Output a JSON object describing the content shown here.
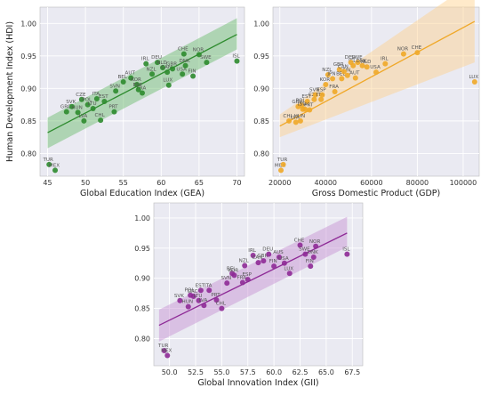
{
  "chart_data": [
    {
      "type": "scatter",
      "xlabel": "Global Education Index (GEA)",
      "ylabel": "Human Development Index (HDI)",
      "xlim": [
        44,
        71
      ],
      "ylim": [
        0.765,
        1.025
      ],
      "xticks": [
        45,
        50,
        55,
        60,
        65,
        70
      ],
      "yticks": [
        0.8,
        0.85,
        0.9,
        0.95,
        1.0
      ],
      "ytick_labels": [
        "0.80",
        "0.85",
        "0.90",
        "0.95",
        "1.00"
      ],
      "grid": true,
      "color": "#2e8b2e",
      "band_color": "#66bb66",
      "regression": {
        "x": [
          45,
          70
        ],
        "y": [
          0.832,
          0.983
        ],
        "band_lower": [
          0.808,
          0.96
        ],
        "band_upper": [
          0.855,
          1.008
        ]
      },
      "points": [
        {
          "label": "TUR",
          "x": 45.2,
          "y": 0.783
        },
        {
          "label": "MEX",
          "x": 46.0,
          "y": 0.774
        },
        {
          "label": "GRC",
          "x": 47.5,
          "y": 0.864
        },
        {
          "label": "SVK",
          "x": 48.2,
          "y": 0.872
        },
        {
          "label": "HUN",
          "x": 49.0,
          "y": 0.863
        },
        {
          "label": "LVA",
          "x": 49.8,
          "y": 0.85
        },
        {
          "label": "CZE",
          "x": 49.5,
          "y": 0.883
        },
        {
          "label": "POL",
          "x": 50.3,
          "y": 0.875
        },
        {
          "label": "LTU",
          "x": 51.0,
          "y": 0.869
        },
        {
          "label": "ITA",
          "x": 51.5,
          "y": 0.884
        },
        {
          "label": "EST",
          "x": 52.5,
          "y": 0.88
        },
        {
          "label": "CHL",
          "x": 52.0,
          "y": 0.851
        },
        {
          "label": "PRT",
          "x": 53.8,
          "y": 0.864
        },
        {
          "label": "SVN",
          "x": 54.0,
          "y": 0.896
        },
        {
          "label": "BEL",
          "x": 55.0,
          "y": 0.91
        },
        {
          "label": "AUT",
          "x": 56.0,
          "y": 0.916
        },
        {
          "label": "KOR",
          "x": 56.8,
          "y": 0.906
        },
        {
          "label": "FRA",
          "x": 57.5,
          "y": 0.893
        },
        {
          "label": "ESP",
          "x": 57.0,
          "y": 0.898
        },
        {
          "label": "IRL",
          "x": 58.0,
          "y": 0.938
        },
        {
          "label": "NZL",
          "x": 58.8,
          "y": 0.922
        },
        {
          "label": "DEU",
          "x": 59.5,
          "y": 0.94
        },
        {
          "label": "NLD",
          "x": 60.2,
          "y": 0.932
        },
        {
          "label": "CAN",
          "x": 60.8,
          "y": 0.925
        },
        {
          "label": "GBR",
          "x": 61.5,
          "y": 0.93
        },
        {
          "label": "LUX",
          "x": 61.0,
          "y": 0.905
        },
        {
          "label": "USA",
          "x": 62.8,
          "y": 0.922
        },
        {
          "label": "DNK",
          "x": 63.2,
          "y": 0.935
        },
        {
          "label": "CHE",
          "x": 63.0,
          "y": 0.953
        },
        {
          "label": "FIN",
          "x": 64.2,
          "y": 0.919
        },
        {
          "label": "NOR",
          "x": 65.0,
          "y": 0.952
        },
        {
          "label": "SWE",
          "x": 66.0,
          "y": 0.94
        },
        {
          "label": "ISL",
          "x": 70.0,
          "y": 0.942
        }
      ]
    },
    {
      "type": "scatter",
      "xlabel": "Gross Domestic Product (GDP)",
      "ylabel": "",
      "xlim": [
        17000,
        107000
      ],
      "ylim": [
        0.765,
        1.025
      ],
      "xticks": [
        20000,
        40000,
        60000,
        80000,
        100000
      ],
      "yticks": [
        0.8,
        0.85,
        0.9,
        0.95,
        1.0
      ],
      "ytick_labels": [
        "0.80",
        "0.85",
        "0.90",
        "0.95",
        "1.00"
      ],
      "grid": true,
      "color": "#f0a828",
      "band_color": "#ffd08a",
      "regression": {
        "x": [
          20000,
          105000
        ],
        "y": [
          0.842,
          1.003
        ],
        "band_lower": [
          0.825,
          0.94
        ],
        "band_upper": [
          0.86,
          1.065
        ]
      },
      "points": [
        {
          "label": "MEX",
          "x": 20500,
          "y": 0.774
        },
        {
          "label": "TUR",
          "x": 21500,
          "y": 0.783
        },
        {
          "label": "LVA",
          "x": 27000,
          "y": 0.848
        },
        {
          "label": "CHL",
          "x": 24000,
          "y": 0.85
        },
        {
          "label": "HUN",
          "x": 29000,
          "y": 0.85
        },
        {
          "label": "GRC",
          "x": 28000,
          "y": 0.872
        },
        {
          "label": "LTU",
          "x": 30000,
          "y": 0.868
        },
        {
          "label": "POL",
          "x": 29500,
          "y": 0.874
        },
        {
          "label": "SVK",
          "x": 31000,
          "y": 0.868
        },
        {
          "label": "EST",
          "x": 32000,
          "y": 0.88
        },
        {
          "label": "PRT",
          "x": 33000,
          "y": 0.867
        },
        {
          "label": "CZE",
          "x": 35000,
          "y": 0.883
        },
        {
          "label": "SVN",
          "x": 35500,
          "y": 0.89
        },
        {
          "label": "ITA",
          "x": 38000,
          "y": 0.883
        },
        {
          "label": "ESP",
          "x": 38500,
          "y": 0.89
        },
        {
          "label": "KOR",
          "x": 40000,
          "y": 0.906
        },
        {
          "label": "NZL",
          "x": 41000,
          "y": 0.921
        },
        {
          "label": "JPN",
          "x": 43000,
          "y": 0.915
        },
        {
          "label": "FRA",
          "x": 44000,
          "y": 0.895
        },
        {
          "label": "GBR",
          "x": 46000,
          "y": 0.929
        },
        {
          "label": "BEL",
          "x": 47000,
          "y": 0.915
        },
        {
          "label": "ISL",
          "x": 52000,
          "y": 0.935
        },
        {
          "label": "FIN",
          "x": 49500,
          "y": 0.92
        },
        {
          "label": "CAN",
          "x": 48000,
          "y": 0.926
        },
        {
          "label": "DEU",
          "x": 51000,
          "y": 0.94
        },
        {
          "label": "AUT",
          "x": 53000,
          "y": 0.916
        },
        {
          "label": "SWE",
          "x": 54000,
          "y": 0.94
        },
        {
          "label": "DNK",
          "x": 56000,
          "y": 0.935
        },
        {
          "label": "NLD",
          "x": 58000,
          "y": 0.933
        },
        {
          "label": "USA",
          "x": 62000,
          "y": 0.925
        },
        {
          "label": "IRL",
          "x": 66000,
          "y": 0.938
        },
        {
          "label": "NOR",
          "x": 74000,
          "y": 0.953
        },
        {
          "label": "CHE",
          "x": 80000,
          "y": 0.955
        },
        {
          "label": "LUX",
          "x": 105000,
          "y": 0.91
        }
      ]
    },
    {
      "type": "scatter",
      "xlabel": "Global Innovation Index (GII)",
      "ylabel": "",
      "xlim": [
        48.5,
        68.5
      ],
      "ylim": [
        0.755,
        1.025
      ],
      "xticks": [
        50.0,
        52.5,
        55.0,
        57.5,
        60.0,
        62.5,
        65.0,
        67.5
      ],
      "xtick_labels": [
        "50.0",
        "52.5",
        "55.0",
        "57.5",
        "60.0",
        "62.5",
        "65.0",
        "67.5"
      ],
      "yticks": [
        0.8,
        0.85,
        0.9,
        0.95,
        1.0
      ],
      "ytick_labels": [
        "0.80",
        "0.85",
        "0.90",
        "0.95",
        "1.00"
      ],
      "grid": true,
      "color": "#8e2a96",
      "band_color": "#c68fd0",
      "regression": {
        "x": [
          49.0,
          67.0
        ],
        "y": [
          0.822,
          0.975
        ],
        "band_lower": [
          0.795,
          0.952
        ],
        "band_upper": [
          0.848,
          1.002
        ]
      },
      "points": [
        {
          "label": "TUR",
          "x": 49.5,
          "y": 0.78
        },
        {
          "label": "MEX",
          "x": 49.8,
          "y": 0.772
        },
        {
          "label": "SVK",
          "x": 51.0,
          "y": 0.863
        },
        {
          "label": "GRC",
          "x": 52.3,
          "y": 0.87
        },
        {
          "label": "HUN",
          "x": 51.8,
          "y": 0.853
        },
        {
          "label": "POL",
          "x": 52.0,
          "y": 0.872
        },
        {
          "label": "LTU",
          "x": 52.8,
          "y": 0.863
        },
        {
          "label": "EST",
          "x": 53.0,
          "y": 0.88
        },
        {
          "label": "LVA",
          "x": 53.3,
          "y": 0.855
        },
        {
          "label": "ITA",
          "x": 53.8,
          "y": 0.88
        },
        {
          "label": "PRT",
          "x": 54.5,
          "y": 0.864
        },
        {
          "label": "CHL",
          "x": 55.0,
          "y": 0.85
        },
        {
          "label": "SVN",
          "x": 55.5,
          "y": 0.892
        },
        {
          "label": "BEL",
          "x": 56.0,
          "y": 0.908
        },
        {
          "label": "KOR",
          "x": 56.2,
          "y": 0.905
        },
        {
          "label": "FRA",
          "x": 57.0,
          "y": 0.893
        },
        {
          "label": "ESP",
          "x": 57.5,
          "y": 0.898
        },
        {
          "label": "NZL",
          "x": 57.2,
          "y": 0.921
        },
        {
          "label": "IRL",
          "x": 58.0,
          "y": 0.938
        },
        {
          "label": "CAN",
          "x": 58.5,
          "y": 0.926
        },
        {
          "label": "GBR",
          "x": 59.0,
          "y": 0.929
        },
        {
          "label": "DEU",
          "x": 59.5,
          "y": 0.94
        },
        {
          "label": "FIN",
          "x": 60.0,
          "y": 0.92
        },
        {
          "label": "AUS",
          "x": 60.5,
          "y": 0.935
        },
        {
          "label": "USA",
          "x": 61.0,
          "y": 0.925
        },
        {
          "label": "LUX",
          "x": 61.5,
          "y": 0.908
        },
        {
          "label": "CHE",
          "x": 62.5,
          "y": 0.955
        },
        {
          "label": "SWE",
          "x": 63.0,
          "y": 0.94
        },
        {
          "label": "NOR",
          "x": 64.0,
          "y": 0.953
        },
        {
          "label": "FIN",
          "x": 63.5,
          "y": 0.92
        },
        {
          "label": "DNK",
          "x": 63.8,
          "y": 0.935
        },
        {
          "label": "ISL",
          "x": 67.0,
          "y": 0.94
        }
      ]
    }
  ]
}
